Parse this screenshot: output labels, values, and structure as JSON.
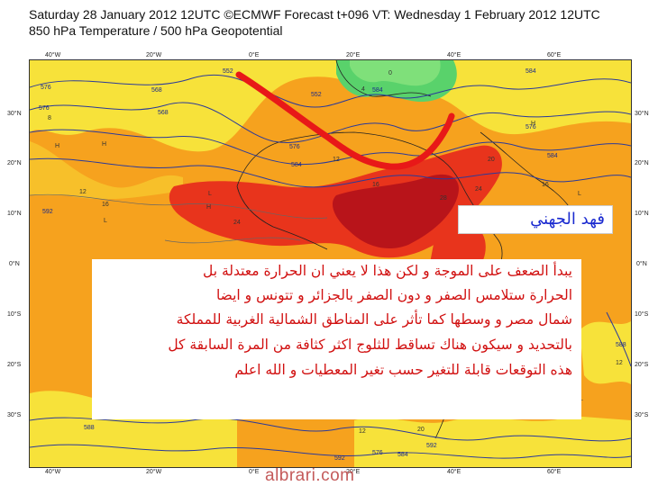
{
  "header": {
    "line1": "Saturday 28 January 2012 12UTC ©ECMWF Forecast t+096 VT: Wednesday 1 February 2012 12UTC",
    "line2": "850 hPa Temperature / 500 hPa Geopotential"
  },
  "map": {
    "top_lon_labels": [
      "40°W",
      "20°W",
      "0°E",
      "20°E",
      "40°E",
      "60°E"
    ],
    "bottom_lon_labels": [
      "40°W",
      "20°W",
      "0°E",
      "20°E",
      "40°E",
      "60°E"
    ],
    "left_lat_labels": [
      "30°N",
      "20°N",
      "10°N",
      "0°N",
      "10°S",
      "20°S",
      "30°S"
    ],
    "right_lat_labels": [
      "30°N",
      "20°N",
      "10°N",
      "0°N",
      "10°S",
      "20°S",
      "30°S"
    ],
    "geopotential_labels": [
      "576",
      "576",
      "552",
      "568",
      "584",
      "552",
      "576",
      "584",
      "568",
      "576",
      "584",
      "592",
      "588",
      "588",
      "584",
      "592",
      "592",
      "576",
      "584"
    ],
    "temperature_labels": [
      "8",
      "12",
      "12",
      "16",
      "20",
      "24",
      "16",
      "28",
      "24",
      "12",
      "8",
      "20",
      "12",
      "16",
      "4",
      "0"
    ],
    "high_markers": [
      "H",
      "H",
      "H",
      "H",
      "H",
      "H",
      "H",
      "H"
    ],
    "low_markers": [
      "L",
      "L",
      "L",
      "L"
    ],
    "colors": {
      "cold_green": "#59d26b",
      "cool_yellow": "#f7e23a",
      "warm_orange": "#f6a21e",
      "hot_red": "#e8341c",
      "hottest_darkred": "#b8141a",
      "contour_blue": "#2b3a9a",
      "trough_red": "#e81818"
    }
  },
  "annotations": {
    "author_name": "فهد الجهني",
    "note_lines": [
      "يبدأ الضعف على الموجة و لكن هذا لا يعني ان الحرارة معتدلة بل",
      "الحرارة ستلامس الصفر و دون الصفر بالجزائر و تتونس و ايضا",
      "شمال مصر و وسطها كما تأثر على المناطق الشمالية الغربية للمملكة",
      "بالتحديد و سيكون هناك تساقط للثلوج اكثر كثافة من المرة السابقة كل",
      "هذه التوقعات قابلة للتغير حسب تغير المعطيات و الله اعلم"
    ]
  },
  "watermark": "albrari.com"
}
